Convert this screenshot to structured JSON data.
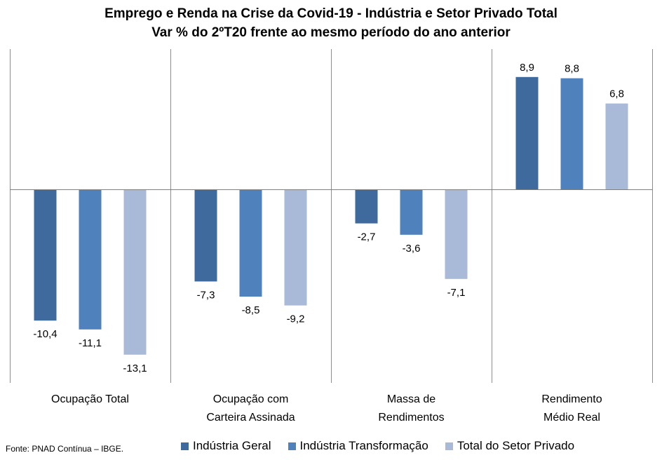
{
  "chart_data": {
    "type": "bar",
    "title": "Emprego e Renda na Crise da Covid-19 - Indústria e Setor Privado Total",
    "subtitle": "Var % do 2ºT20 frente ao mesmo período do ano anterior",
    "categories": [
      [
        "Ocupação Total"
      ],
      [
        "Ocupação com",
        "Carteira Assinada"
      ],
      [
        "Massa de",
        "Rendimentos"
      ],
      [
        "Rendimento",
        "Médio Real"
      ]
    ],
    "series": [
      {
        "name": "Indústria Geral",
        "color": "#3f6a9e",
        "values": [
          -10.4,
          -7.3,
          -2.7,
          8.9
        ],
        "labels": [
          "-10,4",
          "-7,3",
          "-2,7",
          "8,9"
        ]
      },
      {
        "name": "Indústria Transformação",
        "color": "#4f81bd",
        "values": [
          -11.1,
          -8.5,
          -3.6,
          8.8
        ],
        "labels": [
          "-11,1",
          "-8,5",
          "-3,6",
          "8,8"
        ]
      },
      {
        "name": "Total do Setor Privado",
        "color": "#a9b9d8",
        "values": [
          -13.1,
          -9.2,
          -7.1,
          6.8
        ],
        "labels": [
          "-13,1",
          "-9,2",
          "-7,1",
          "6,8"
        ]
      }
    ],
    "xlabel": "",
    "ylabel": "",
    "ylim": [
      -15,
      11
    ],
    "grid": false,
    "legend_position": "bottom"
  },
  "source": "Fonte: PNAD Contínua – IBGE."
}
